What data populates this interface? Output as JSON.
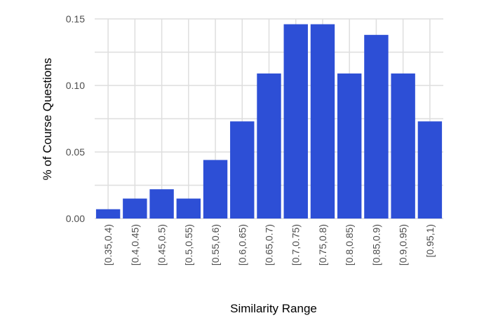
{
  "chart_data": {
    "type": "bar",
    "title": "",
    "xlabel": "Similarity Range",
    "ylabel": "% of Course Questions",
    "categories": [
      "[0.35,0.4)",
      "[0.4,0.45)",
      "[0.45,0.5)",
      "[0.5,0.55)",
      "[0.55,0.6)",
      "[0.6,0.65)",
      "[0.65,0.7)",
      "[0.7,0.75)",
      "[0.75,0.8)",
      "[0.8,0.85)",
      "[0.85,0.9)",
      "[0.9,0.95)",
      "[0.95,1)"
    ],
    "values": [
      0.007,
      0.015,
      0.022,
      0.015,
      0.044,
      0.073,
      0.109,
      0.146,
      0.146,
      0.109,
      0.138,
      0.109,
      0.073
    ],
    "yticks": [
      0.0,
      0.05,
      0.1,
      0.15
    ],
    "ytick_labels": [
      "0.00",
      "0.05",
      "0.10",
      "0.15"
    ],
    "ylim": [
      0,
      0.15
    ],
    "grid": true,
    "bar_color": "#2d4fd6",
    "grid_color": "#dedede"
  }
}
